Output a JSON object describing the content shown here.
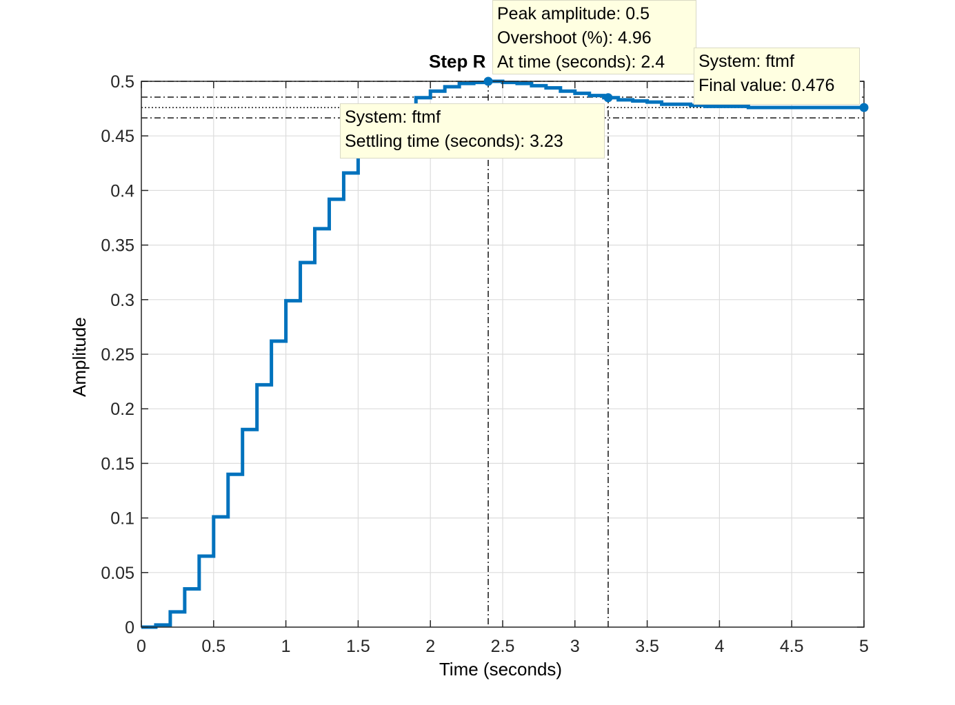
{
  "chart_data": {
    "type": "line",
    "title": "Step R",
    "xlabel": "Time (seconds)",
    "ylabel": "Amplitude",
    "xlim": [
      0,
      5
    ],
    "ylim": [
      0,
      0.5
    ],
    "grid": true,
    "xticks": [
      0,
      0.5,
      1,
      1.5,
      2,
      2.5,
      3,
      3.5,
      4,
      4.5,
      5
    ],
    "xtick_labels": [
      "0",
      "0.5",
      "1",
      "1.5",
      "2",
      "2.5",
      "3",
      "3.5",
      "4",
      "4.5",
      "5"
    ],
    "yticks": [
      0,
      0.05,
      0.1,
      0.15,
      0.2,
      0.25,
      0.3,
      0.35,
      0.4,
      0.45,
      0.5
    ],
    "ytick_labels": [
      "0",
      "0.05",
      "0.1",
      "0.15",
      "0.2",
      "0.25",
      "0.3",
      "0.35",
      "0.4",
      "0.45",
      "0.5"
    ],
    "series": [
      {
        "name": "ftmf",
        "step": "post",
        "color": "#0072bd",
        "x": [
          0,
          0.1,
          0.2,
          0.3,
          0.4,
          0.5,
          0.6,
          0.7,
          0.8,
          0.9,
          1.0,
          1.1,
          1.2,
          1.3,
          1.4,
          1.5,
          1.6,
          1.7,
          1.8,
          1.9,
          2.0,
          2.1,
          2.2,
          2.3,
          2.4,
          2.5,
          2.6,
          2.7,
          2.8,
          2.9,
          3.0,
          3.1,
          3.2,
          3.3,
          3.4,
          3.5,
          3.6,
          3.7,
          3.8,
          3.9,
          4.0,
          4.1,
          4.2,
          4.3,
          4.4,
          4.5,
          4.6,
          4.7,
          4.8,
          4.9,
          5.0
        ],
        "y": [
          0,
          0.002,
          0.014,
          0.035,
          0.065,
          0.101,
          0.14,
          0.181,
          0.222,
          0.262,
          0.299,
          0.334,
          0.365,
          0.392,
          0.416,
          0.436,
          0.452,
          0.466,
          0.477,
          0.485,
          0.491,
          0.495,
          0.498,
          0.499,
          0.5,
          0.499,
          0.498,
          0.496,
          0.494,
          0.491,
          0.489,
          0.487,
          0.485,
          0.483,
          0.482,
          0.481,
          0.479,
          0.479,
          0.478,
          0.477,
          0.477,
          0.477,
          0.476,
          0.476,
          0.476,
          0.476,
          0.476,
          0.476,
          0.476,
          0.476,
          0.476
        ]
      }
    ],
    "reference_lines": {
      "peak_value": 0.5,
      "final_value": 0.476,
      "settling_band": [
        0.4855,
        0.4665
      ],
      "peak_time": 2.4,
      "settling_time": 3.23
    },
    "markers": [
      {
        "x": 2.4,
        "y": 0.5
      },
      {
        "x": 3.23,
        "y": 0.485
      },
      {
        "x": 5.0,
        "y": 0.476
      }
    ]
  },
  "datatips": {
    "peak": {
      "line1": "Peak amplitude: 0.5",
      "line2": "Overshoot (%): 4.96",
      "line3": "At time (seconds): 2.4"
    },
    "settling": {
      "line1": "System: ftmf",
      "line2": "Settling time (seconds): 3.23"
    },
    "final": {
      "line1": "System: ftmf",
      "line2": "Final value: 0.476"
    }
  }
}
